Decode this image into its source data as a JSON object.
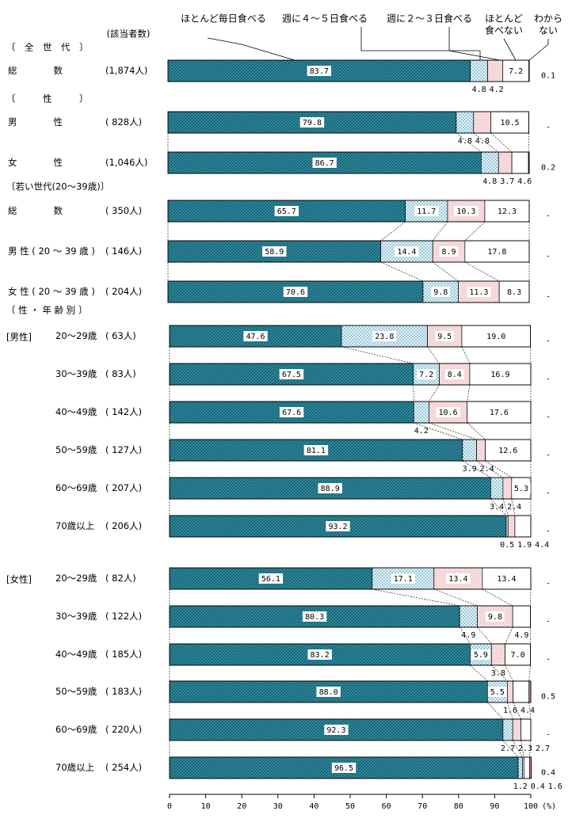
{
  "chart_data": {
    "type": "bar",
    "orientation": "horizontal",
    "stacked": true,
    "percent": true,
    "xlim": [
      0,
      100
    ],
    "xticks": [
      "0",
      "10",
      "20",
      "30",
      "40",
      "50",
      "60",
      "70",
      "80",
      "90",
      "100"
    ],
    "xunit": "(%)",
    "count_header": "(該当者数)",
    "legend": [
      "ほとんど毎日食べる",
      "週に４～５日食べる",
      "週に２～３日食べる",
      "ほとんど食べない",
      "わからない"
    ],
    "legend_lines": [
      [
        "ほとんど毎日食べる"
      ],
      [
        "週に４～５日食べる"
      ],
      [
        "週に２～３日食べる"
      ],
      [
        "ほとんど",
        "食べない"
      ],
      [
        "わから",
        "ない"
      ]
    ],
    "colors": [
      "#2e8a9e",
      "#d6eef6",
      "#f4d0d4",
      "#ffffff",
      "#cc7777"
    ],
    "sections": [
      {
        "id": "all",
        "title": "〔　全　世　代　〕"
      },
      {
        "id": "sex",
        "title": "〔　　　性　　　〕"
      },
      {
        "id": "young",
        "title": "〔若い世代(20～39歳)〕"
      },
      {
        "id": "sexage",
        "title": "〔 性 ・ 年 齢 別 〕"
      }
    ],
    "rows": [
      {
        "group": "",
        "label": "総　　　　数",
        "n": "(1,874人)",
        "values": [
          83.7,
          4.8,
          4.2,
          7.2,
          0.1
        ],
        "labels": [
          "83.7",
          "4.8",
          "4.2",
          "7.2",
          "0.1"
        ]
      },
      {
        "group": "",
        "label": "男　　　　性",
        "n": "( 828人)",
        "values": [
          79.8,
          4.8,
          4.8,
          10.5,
          0
        ],
        "labels": [
          "79.8",
          "4.8",
          "4.8",
          "10.5",
          "-"
        ]
      },
      {
        "group": "",
        "label": "女　　　　性",
        "n": "(1,046人)",
        "values": [
          86.7,
          4.8,
          3.7,
          4.6,
          0.2
        ],
        "labels": [
          "86.7",
          "4.8",
          "3.7",
          "4.6",
          "0.2"
        ]
      },
      {
        "group": "",
        "label": "総　　　　数",
        "n": "( 350人)",
        "values": [
          65.7,
          11.7,
          10.3,
          12.3,
          0
        ],
        "labels": [
          "65.7",
          "11.7",
          "10.3",
          "12.3",
          "-"
        ]
      },
      {
        "group": "",
        "label": "男 性 ( 20 ～ 39 歳 )",
        "n": "( 146人)",
        "values": [
          58.9,
          14.4,
          8.9,
          17.8,
          0
        ],
        "labels": [
          "58.9",
          "14.4",
          "8.9",
          "17.8",
          "-"
        ]
      },
      {
        "group": "",
        "label": "女 性 ( 20 ～ 39 歳 )",
        "n": "( 204人)",
        "values": [
          70.6,
          9.8,
          11.3,
          8.3,
          0
        ],
        "labels": [
          "70.6",
          "9.8",
          "11.3",
          "8.3",
          "-"
        ]
      },
      {
        "group": "[男性]",
        "label": "20～29歳",
        "n": "(  63人)",
        "values": [
          47.6,
          23.8,
          9.5,
          19.0,
          0
        ],
        "labels": [
          "47.6",
          "23.8",
          "9.5",
          "19.0",
          "-"
        ]
      },
      {
        "group": "",
        "label": "30～39歳",
        "n": "(  83人)",
        "values": [
          67.5,
          7.2,
          8.4,
          16.9,
          0
        ],
        "labels": [
          "67.5",
          "7.2",
          "8.4",
          "16.9",
          "-"
        ]
      },
      {
        "group": "",
        "label": "40～49歳",
        "n": "( 142人)",
        "values": [
          67.6,
          4.2,
          10.6,
          17.6,
          0
        ],
        "labels": [
          "67.6",
          "4.2",
          "10.6",
          "17.6",
          "-"
        ]
      },
      {
        "group": "",
        "label": "50～59歳",
        "n": "( 127人)",
        "values": [
          81.1,
          3.9,
          2.4,
          12.6,
          0
        ],
        "labels": [
          "81.1",
          "3.9",
          "2.4",
          "12.6",
          "-"
        ]
      },
      {
        "group": "",
        "label": "60～69歳",
        "n": "( 207人)",
        "values": [
          88.9,
          3.4,
          2.4,
          5.3,
          0
        ],
        "labels": [
          "88.9",
          "3.4",
          "2.4",
          "5.3",
          "-"
        ]
      },
      {
        "group": "",
        "label": "70歳以上",
        "n": "( 206人)",
        "values": [
          93.2,
          0.5,
          1.9,
          4.4,
          0
        ],
        "labels": [
          "93.2",
          "0.5",
          "1.9",
          "4.4",
          "-"
        ]
      },
      {
        "group": "[女性]",
        "label": "20～29歳",
        "n": "(  82人)",
        "values": [
          56.1,
          17.1,
          13.4,
          13.4,
          0
        ],
        "labels": [
          "56.1",
          "17.1",
          "13.4",
          "13.4",
          "-"
        ]
      },
      {
        "group": "",
        "label": "30～39歳",
        "n": "( 122人)",
        "values": [
          80.3,
          4.9,
          9.8,
          4.9,
          0
        ],
        "labels": [
          "80.3",
          "4.9",
          "9.8",
          "4.9",
          "-"
        ]
      },
      {
        "group": "",
        "label": "40～49歳",
        "n": "( 185人)",
        "values": [
          83.2,
          5.9,
          3.8,
          7.0,
          0
        ],
        "labels": [
          "83.2",
          "5.9",
          "3.8",
          "7.0",
          "-"
        ]
      },
      {
        "group": "",
        "label": "50～59歳",
        "n": "( 183人)",
        "values": [
          88.0,
          5.5,
          1.6,
          4.4,
          0.5
        ],
        "labels": [
          "88.0",
          "5.5",
          "1.6",
          "4.4",
          "0.5"
        ]
      },
      {
        "group": "",
        "label": "60～69歳",
        "n": "( 220人)",
        "values": [
          92.3,
          2.7,
          2.3,
          2.7,
          0
        ],
        "labels": [
          "92.3",
          "2.7",
          "2.3",
          "2.7",
          "-"
        ]
      },
      {
        "group": "",
        "label": "70歳以上",
        "n": "( 254人)",
        "values": [
          96.5,
          1.2,
          0.4,
          1.6,
          0.4
        ],
        "labels": [
          "96.5",
          "1.2",
          "0.4",
          "1.6",
          "0.4"
        ]
      }
    ]
  }
}
